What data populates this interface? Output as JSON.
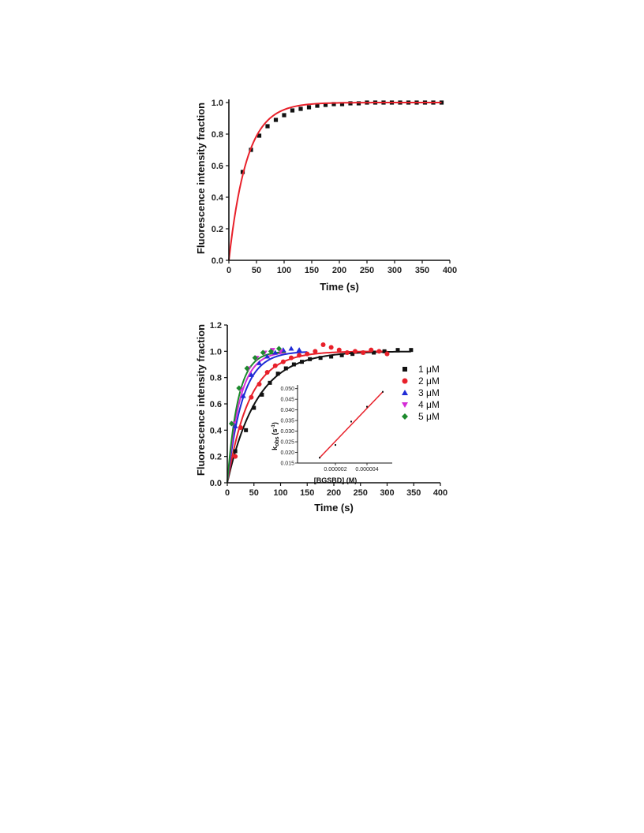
{
  "chart_data": [
    {
      "type": "scatter",
      "xlabel": "Time (s)",
      "ylabel": "Fluorescence intensity fraction",
      "xlim": [
        0,
        400
      ],
      "ylim": [
        0.0,
        1.0
      ],
      "xticks": [
        0,
        50,
        100,
        150,
        200,
        250,
        300,
        350,
        400
      ],
      "yticks": [
        "0.0",
        "0.2",
        "0.4",
        "0.6",
        "0.8",
        "1.0"
      ],
      "series": [
        {
          "color": "#111111",
          "marker": "square",
          "x": [
            25,
            40,
            55,
            70,
            85,
            100,
            115,
            130,
            145,
            160,
            175,
            190,
            205,
            220,
            235,
            250,
            265,
            280,
            295,
            310,
            325,
            340,
            355,
            370,
            385
          ],
          "y": [
            0.56,
            0.7,
            0.79,
            0.85,
            0.89,
            0.92,
            0.95,
            0.96,
            0.97,
            0.98,
            0.985,
            0.99,
            0.99,
            0.995,
            0.995,
            1.0,
            1.0,
            1.0,
            1.0,
            1.0,
            1.0,
            1.0,
            1.0,
            1.0,
            1.0
          ]
        }
      ],
      "fits": [
        {
          "color": "#e8202a",
          "k": 0.031,
          "xmax": 385
        }
      ]
    },
    {
      "type": "scatter",
      "xlabel": "Time (s)",
      "ylabel": "Fluorescence intensity fraction",
      "xlim": [
        0,
        400
      ],
      "ylim": [
        0.0,
        1.2
      ],
      "xticks": [
        0,
        50,
        100,
        150,
        200,
        250,
        300,
        350,
        400
      ],
      "yticks": [
        "0.0",
        "0.2",
        "0.4",
        "0.6",
        "0.8",
        "1.0",
        "1.2"
      ],
      "legend_position": "right",
      "series": [
        {
          "name": "1 μM",
          "color": "#111111",
          "marker": "square",
          "x": [
            15,
            35,
            50,
            65,
            80,
            95,
            110,
            125,
            140,
            155,
            175,
            195,
            215,
            235,
            255,
            275,
            295,
            320,
            345
          ],
          "y": [
            0.24,
            0.4,
            0.57,
            0.67,
            0.76,
            0.83,
            0.87,
            0.9,
            0.92,
            0.94,
            0.95,
            0.96,
            0.97,
            0.98,
            0.99,
            0.99,
            1.0,
            1.01,
            1.01
          ],
          "k": 0.018,
          "xmax": 345
        },
        {
          "name": "2 μM",
          "color": "#e8202a",
          "marker": "circle",
          "x": [
            15,
            25,
            45,
            60,
            75,
            90,
            105,
            120,
            135,
            150,
            165,
            180,
            195,
            210,
            225,
            240,
            255,
            270,
            285,
            300
          ],
          "y": [
            0.2,
            0.42,
            0.65,
            0.75,
            0.84,
            0.89,
            0.92,
            0.95,
            0.97,
            0.98,
            1.0,
            1.05,
            1.03,
            1.01,
            0.99,
            1.0,
            0.99,
            1.01,
            1.0,
            0.98
          ],
          "k": 0.024,
          "xmax": 300
        },
        {
          "name": "3 μM",
          "color": "#1f2bd6",
          "marker": "triangle-up",
          "x": [
            15,
            30,
            45,
            60,
            75,
            90,
            105,
            120,
            135
          ],
          "y": [
            0.43,
            0.66,
            0.82,
            0.91,
            0.96,
            0.99,
            1.01,
            1.02,
            1.01
          ],
          "k": 0.035,
          "xmax": 150
        },
        {
          "name": "4 μM",
          "color": "#d42cd6",
          "marker": "triangle-down",
          "x": [
            10,
            25,
            40,
            55,
            70,
            85,
            100
          ],
          "y": [
            0.45,
            0.71,
            0.87,
            0.95,
            0.99,
            1.01,
            1.0
          ],
          "k": 0.042,
          "xmax": 110
        },
        {
          "name": "5 μM",
          "color": "#1c8a2c",
          "marker": "diamond",
          "x": [
            8,
            22,
            37,
            52,
            67,
            82,
            97
          ],
          "y": [
            0.45,
            0.72,
            0.87,
            0.95,
            0.99,
            1.0,
            1.02
          ],
          "k": 0.049,
          "xmax": 110
        }
      ],
      "inset": {
        "type": "scatter",
        "xlabel": "[BGSBD] (M)",
        "ylabel_main": "k",
        "ylabel_sub": "obs",
        "ylabel_unit": "(s",
        "ylabel_sup": "-1",
        "ylabel_close": ")",
        "xlim": [
          0,
          5.5e-06
        ],
        "ylim": [
          0.015,
          0.051
        ],
        "xticks": [
          "0.000002",
          "0.000004"
        ],
        "xtick_values": [
          2e-06,
          4e-06
        ],
        "yticks": [
          "0.015",
          "0.020",
          "0.025",
          "0.030",
          "0.035",
          "0.040",
          "0.045",
          "0.050"
        ],
        "x": [
          1e-06,
          2e-06,
          3e-06,
          4e-06,
          5e-06
        ],
        "y": [
          0.0175,
          0.0235,
          0.0345,
          0.0415,
          0.0485
        ],
        "fit_color": "#e8202a",
        "fit_x": [
          1e-06,
          5e-06
        ],
        "fit_y": [
          0.0175,
          0.0485
        ]
      }
    }
  ]
}
